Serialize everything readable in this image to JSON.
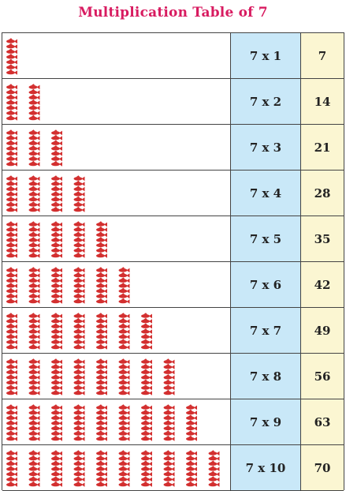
{
  "title": "Multiplication Table of 7",
  "rows": [
    {
      "expression": "7 x 1",
      "product": "7",
      "groups": 1
    },
    {
      "expression": "7 x 2",
      "product": "14",
      "groups": 2
    },
    {
      "expression": "7 x 3",
      "product": "21",
      "groups": 3
    },
    {
      "expression": "7 x 4",
      "product": "28",
      "groups": 4
    },
    {
      "expression": "7 x 5",
      "product": "35",
      "groups": 5
    },
    {
      "expression": "7 x 6",
      "product": "42",
      "groups": 6
    },
    {
      "expression": "7 x 7",
      "product": "49",
      "groups": 7
    },
    {
      "expression": "7 x 8",
      "product": "56",
      "groups": 8
    },
    {
      "expression": "7 x 9",
      "product": "63",
      "groups": 9
    },
    {
      "expression": "7 x 10",
      "product": "70",
      "groups": 10
    }
  ],
  "items_per_group": 7,
  "icon": "red-fish-icon",
  "colors": {
    "title": "#d81b60",
    "expression_bg": "#c9e8f8",
    "product_bg": "#fbf6d2",
    "icon": "#d32f2f"
  }
}
